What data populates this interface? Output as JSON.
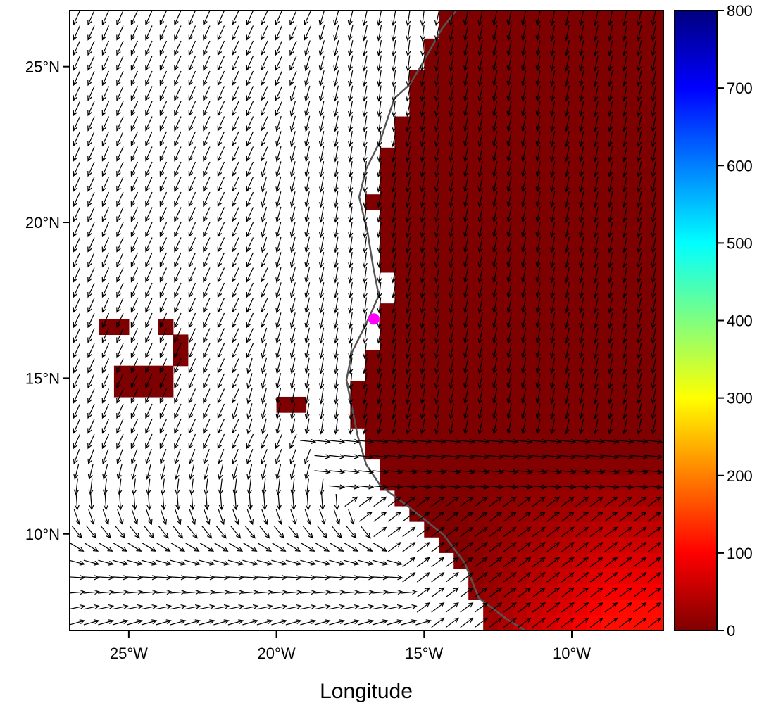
{
  "chart_data": {
    "type": "heatmap",
    "title": "",
    "xlabel": "Longitude",
    "ylabel": "",
    "x_range_deg": [
      -27.0,
      -6.9
    ],
    "y_range_deg": [
      6.9,
      26.8
    ],
    "x_ticks": [
      {
        "value": -25,
        "label": "25°W"
      },
      {
        "value": -20,
        "label": "20°W"
      },
      {
        "value": -15,
        "label": "15°W"
      },
      {
        "value": -10,
        "label": "10°W"
      }
    ],
    "y_ticks": [
      {
        "value": 10,
        "label": "10°N"
      },
      {
        "value": 15,
        "label": "15°N"
      },
      {
        "value": 20,
        "label": "20°N"
      },
      {
        "value": 25,
        "label": "25°N"
      }
    ],
    "colorbar": {
      "min": 0,
      "max": 800,
      "ticks": [
        "0",
        "100",
        "200",
        "300",
        "400",
        "500",
        "600",
        "700",
        "800"
      ],
      "palette": [
        "#7f0000",
        "#ff0000",
        "#ff7f00",
        "#ffff00",
        "#7fff7f",
        "#00ffff",
        "#007fff",
        "#0000ff",
        "#00007f"
      ]
    },
    "field_description_values": {
      "ocean_value": null,
      "land_north_value": 0,
      "land_southeast_max_value": 110
    },
    "marker": {
      "lon": -16.7,
      "lat": 16.9,
      "color": "#ff00ff"
    },
    "vectors": "wind field arrows (northeasterly over ocean, converging southerly over land south of 13°N)"
  }
}
